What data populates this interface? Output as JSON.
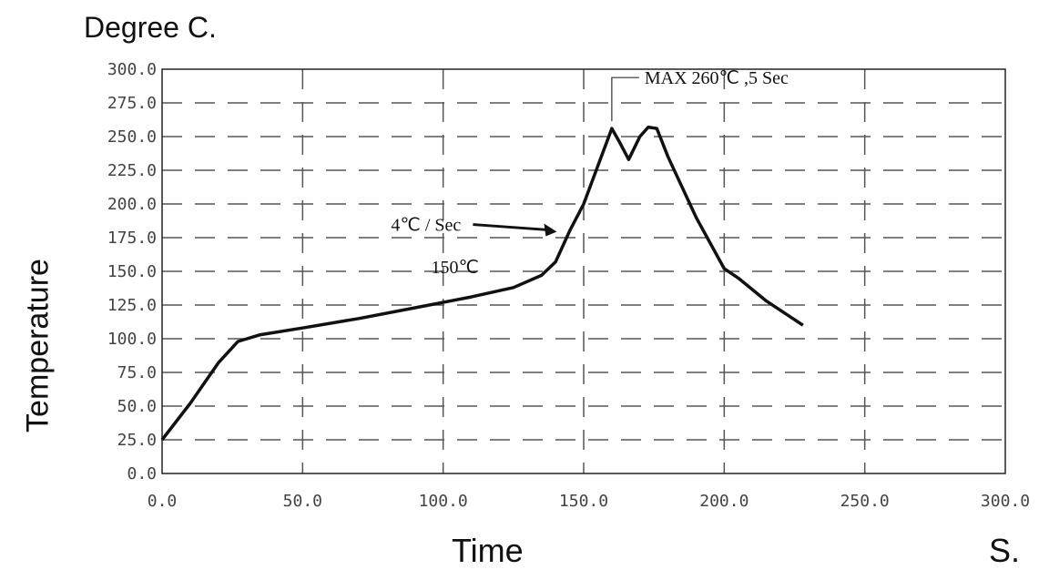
{
  "chart_data": {
    "type": "line",
    "ytitle": "Degree C.",
    "ylabel": "Temperature",
    "xlabel": "Time",
    "xunit": "S.",
    "xlim": [
      0,
      300
    ],
    "ylim": [
      0,
      300
    ],
    "xticks": [
      "0.0",
      "50.0",
      "100.0",
      "150.0",
      "200.0",
      "250.0",
      "300.0"
    ],
    "yticks": [
      "0.0",
      "25.0",
      "50.0",
      "75.0",
      "100.0",
      "125.0",
      "150.0",
      "175.0",
      "200.0",
      "225.0",
      "250.0",
      "275.0",
      "300.0"
    ],
    "grid": true,
    "series": [
      {
        "x": [
          0,
          10,
          20,
          27,
          35,
          50,
          70,
          90,
          110,
          125,
          135,
          140,
          145,
          150,
          155,
          160,
          163,
          166,
          170,
          173,
          176,
          180,
          190,
          200,
          205,
          215,
          228
        ],
        "y": [
          25,
          52,
          82,
          98,
          103,
          108,
          115,
          123,
          131,
          138,
          147,
          157,
          180,
          200,
          228,
          256,
          245,
          233,
          250,
          257,
          256,
          235,
          190,
          152,
          145,
          128,
          110
        ]
      }
    ],
    "annotations": [
      {
        "text": "MAX 260℃ ,5 Sec",
        "x": 160,
        "y": 260
      },
      {
        "text": "4℃ / Sec",
        "x": 143,
        "y": 178
      },
      {
        "text": "150℃",
        "x": 133,
        "y": 150
      }
    ],
    "line_color": "#111111",
    "grid_color": "#555555"
  }
}
